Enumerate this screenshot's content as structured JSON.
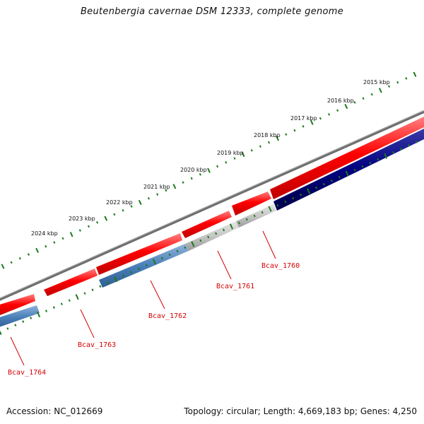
{
  "title": "Beutenbergia cavernae DSM 12333, complete genome",
  "footer": {
    "accession": "Accession: NC_012669",
    "summary": "Topology: circular; Length: 4,669,183 bp; Genes: 4,250"
  },
  "colors": {
    "backbone": "#808080",
    "cds_forward": "#ff0000",
    "cds_reverse_blue": "#4a7fb8",
    "cds_reverse_grey": "#c6c6c6",
    "cds_reverse_navy": "#000080",
    "ticks": "#1a7a1a",
    "label": "#d40000"
  },
  "scale_labels": [
    "2015 kbp",
    "2016 kbp",
    "2017 kbp",
    "2018 kbp",
    "2019 kbp",
    "2020 kbp",
    "2021 kbp",
    "2022 kbp",
    "2023 kbp",
    "2024 kbp"
  ],
  "genes": [
    {
      "label": "Bcav_1760",
      "strand": "reverse",
      "color": "navy"
    },
    {
      "label": "Bcav_1761",
      "strand": "reverse",
      "color": "grey"
    },
    {
      "label": "Bcav_1762",
      "strand": "reverse",
      "color": "blue"
    },
    {
      "label": "Bcav_1763",
      "strand": "reverse",
      "color": "blue"
    },
    {
      "label": "Bcav_1764",
      "strand": "forward",
      "color": "red"
    }
  ]
}
